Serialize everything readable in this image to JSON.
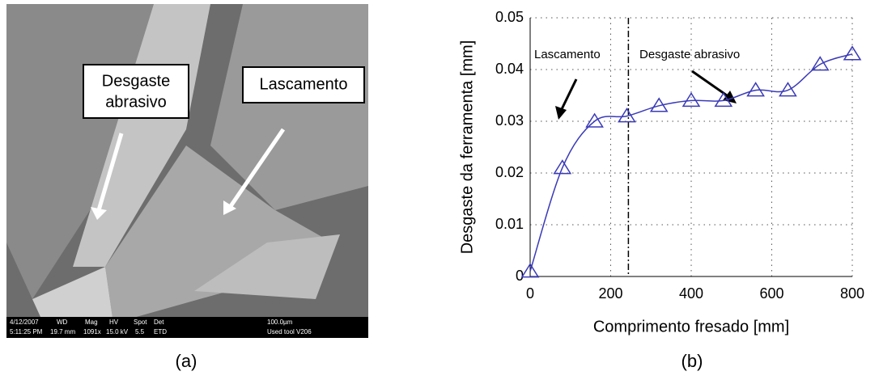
{
  "sem": {
    "labels": {
      "abrasive": [
        "Desgaste",
        "abrasivo"
      ],
      "chipping": "Lascamento"
    },
    "info": [
      "4/12/2007",
      "5:11:25 PM",
      "WD",
      "19.7 mm",
      "Mag",
      "1091x",
      "HV",
      "15.0 kV",
      "Spot",
      "5.5",
      "Det",
      "ETD",
      "100.0µm",
      "Used tool V206"
    ]
  },
  "captions": [
    "(a)",
    "(b)"
  ],
  "chart_data": {
    "type": "line",
    "x_label": "Comprimento fresado [mm]",
    "y_label": "Desgaste da ferramenta [mm]",
    "x": [
      0,
      80,
      160,
      240,
      320,
      400,
      480,
      560,
      640,
      720,
      800
    ],
    "series": [
      {
        "name": "Desgaste",
        "color": "#3a3ab8",
        "values": [
          0.001,
          0.021,
          0.03,
          0.031,
          0.033,
          0.034,
          0.034,
          0.036,
          0.036,
          0.041,
          0.043
        ]
      }
    ],
    "xlim": [
      0,
      800
    ],
    "ylim": [
      0,
      0.05
    ],
    "xticks": [
      0,
      200,
      400,
      600,
      800
    ],
    "yticks": [
      0,
      0.01,
      0.02,
      0.03,
      0.04,
      0.05
    ],
    "grid": true,
    "marker": "triangle",
    "vline": 244,
    "annotations": [
      "Lascamento",
      "Desgaste abrasivo"
    ]
  }
}
